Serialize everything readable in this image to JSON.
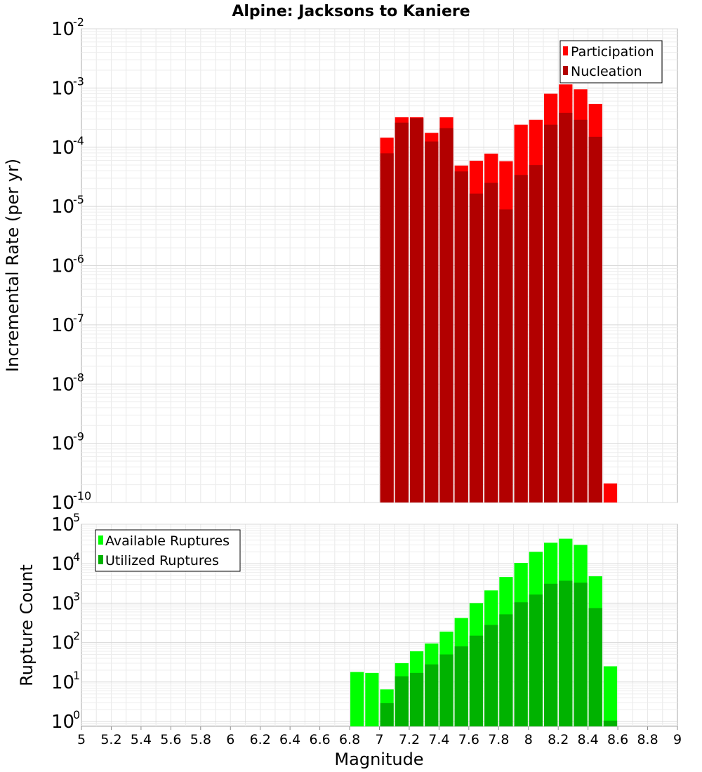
{
  "chart_data": [
    {
      "type": "bar",
      "title": "Alpine: Jacksons to Kaniere",
      "ylabel": "Incremental Rate (per yr)",
      "xlabel": "",
      "yscale": "log",
      "ylim": [
        1e-10,
        0.01
      ],
      "xlim": [
        5,
        9
      ],
      "y_ticks": [
        {
          "base": "10",
          "exp": "-2"
        },
        {
          "base": "10",
          "exp": "-3"
        },
        {
          "base": "10",
          "exp": "-4"
        },
        {
          "base": "10",
          "exp": "-5"
        },
        {
          "base": "10",
          "exp": "-6"
        },
        {
          "base": "10",
          "exp": "-7"
        },
        {
          "base": "10",
          "exp": "-8"
        },
        {
          "base": "10",
          "exp": "-9"
        },
        {
          "base": "10",
          "exp": "-10"
        }
      ],
      "legend": {
        "position": "top-right"
      },
      "bin_width": 0.1,
      "series": [
        {
          "name": "Participation",
          "color": "#ff0000",
          "x": [
            7.05,
            7.15,
            7.25,
            7.35,
            7.45,
            7.55,
            7.65,
            7.75,
            7.85,
            7.95,
            8.05,
            8.15,
            8.25,
            8.35,
            8.45,
            8.55
          ],
          "values": [
            0.000145,
            0.00032,
            0.00032,
            0.000175,
            0.00032,
            4.9e-05,
            5.9e-05,
            7.8e-05,
            5.8e-05,
            0.00024,
            0.00029,
            0.0008,
            0.00115,
            0.00095,
            0.00054,
            2.1e-10
          ]
        },
        {
          "name": "Nucleation",
          "color": "#b20000",
          "x": [
            7.05,
            7.15,
            7.25,
            7.35,
            7.45,
            7.55,
            7.65,
            7.75,
            7.85,
            7.95,
            8.05,
            8.15,
            8.25,
            8.35,
            8.45
          ],
          "values": [
            7.9e-05,
            0.00026,
            0.00031,
            0.000125,
            0.00021,
            3.9e-05,
            1.65e-05,
            2.5e-05,
            8.9e-06,
            3.4e-05,
            5e-05,
            0.00024,
            0.00038,
            0.00029,
            0.00015
          ]
        }
      ]
    },
    {
      "type": "bar",
      "title": "",
      "ylabel": "Rupture Count",
      "xlabel": "Magnitude",
      "yscale": "log",
      "ylim": [
        0.75,
        100000
      ],
      "xlim": [
        5,
        9
      ],
      "x_ticks": [
        "5",
        "5.2",
        "5.4",
        "5.6",
        "5.8",
        "6",
        "6.2",
        "6.4",
        "6.6",
        "6.8",
        "7",
        "7.2",
        "7.4",
        "7.6",
        "7.8",
        "8",
        "8.2",
        "8.4",
        "8.6",
        "8.8",
        "9"
      ],
      "y_ticks": [
        {
          "base": "10",
          "exp": "5"
        },
        {
          "base": "10",
          "exp": "4"
        },
        {
          "base": "10",
          "exp": "3"
        },
        {
          "base": "10",
          "exp": "2"
        },
        {
          "base": "10",
          "exp": "1"
        },
        {
          "base": "10",
          "exp": "0"
        }
      ],
      "legend": {
        "position": "top-left"
      },
      "bin_width": 0.1,
      "series": [
        {
          "name": "Available Ruptures",
          "color": "#00ff00",
          "x": [
            6.85,
            6.95,
            7.05,
            7.15,
            7.25,
            7.35,
            7.45,
            7.55,
            7.65,
            7.75,
            7.85,
            7.95,
            8.05,
            8.15,
            8.25,
            8.35,
            8.45,
            8.55
          ],
          "values": [
            18,
            17,
            6.5,
            30,
            60,
            95,
            190,
            420,
            1000,
            2100,
            4600,
            10500,
            20000,
            34000,
            43000,
            30000,
            4800,
            25
          ]
        },
        {
          "name": "Utilized Ruptures",
          "color": "#00b200",
          "x": [
            7.05,
            7.15,
            7.25,
            7.35,
            7.45,
            7.55,
            7.65,
            7.75,
            7.85,
            7.95,
            8.05,
            8.15,
            8.25,
            8.35,
            8.45,
            8.55
          ],
          "values": [
            2.9,
            14,
            17,
            28,
            50,
            80,
            150,
            280,
            520,
            1050,
            1650,
            3100,
            3700,
            3300,
            750,
            1.05
          ]
        }
      ]
    }
  ]
}
